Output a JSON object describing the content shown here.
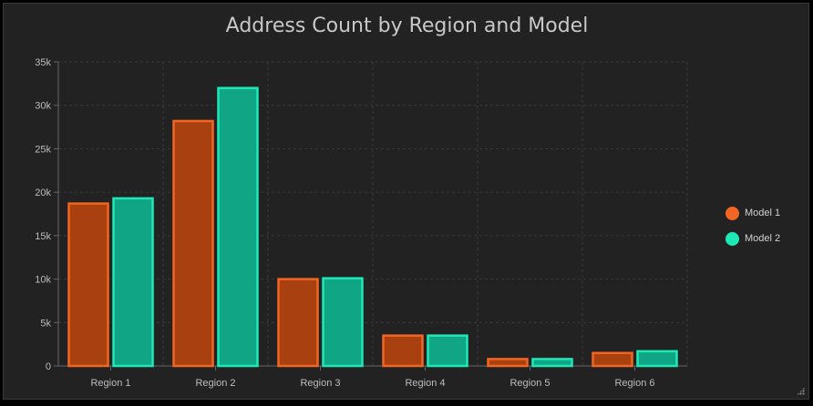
{
  "chart_data": {
    "type": "bar",
    "title": "Address Count by Region and Model",
    "xlabel": "",
    "ylabel": "",
    "categories": [
      "Region 1",
      "Region 2",
      "Region 3",
      "Region 4",
      "Region 5",
      "Region 6"
    ],
    "series": [
      {
        "name": "Model 1",
        "color": "#f26522",
        "fill": "#a8410f",
        "values": [
          18800,
          28300,
          10100,
          3600,
          900,
          1600
        ]
      },
      {
        "name": "Model 2",
        "color": "#1de9b6",
        "fill": "#10a585",
        "values": [
          19400,
          32100,
          10200,
          3600,
          900,
          1800
        ]
      }
    ],
    "ylim": [
      0,
      35000
    ],
    "yticks": [
      0,
      5000,
      10000,
      15000,
      20000,
      25000,
      30000,
      35000
    ],
    "ytick_labels": [
      "0",
      "5k",
      "10k",
      "15k",
      "20k",
      "25k",
      "30k",
      "35k"
    ],
    "grid": true,
    "legend_position": "right"
  }
}
